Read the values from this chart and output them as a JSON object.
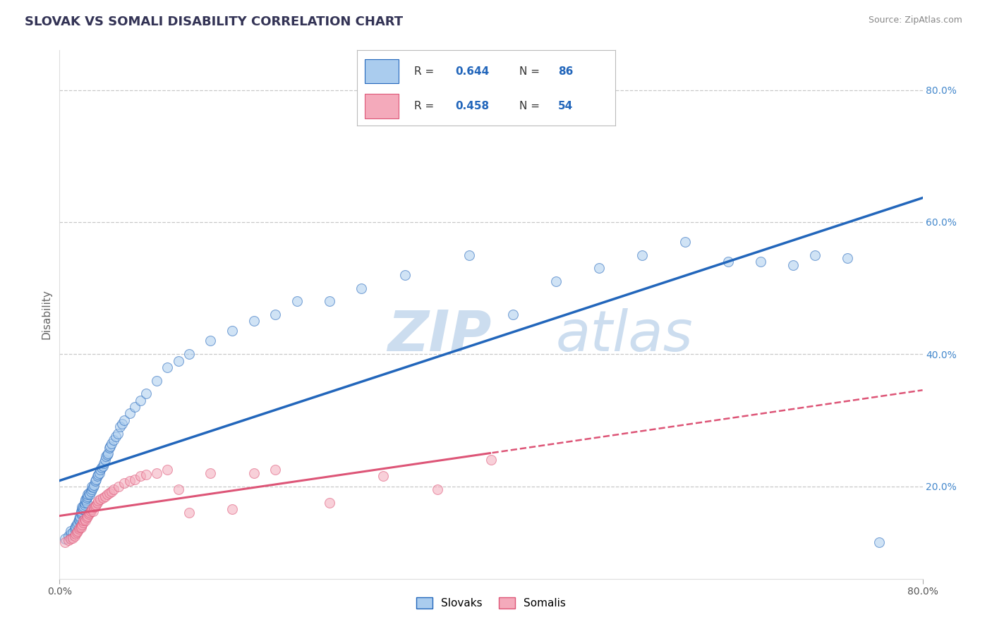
{
  "title": "SLOVAK VS SOMALI DISABILITY CORRELATION CHART",
  "source": "Source: ZipAtlas.com",
  "ylabel": "Disability",
  "xlabel": "",
  "xlim": [
    0.0,
    0.8
  ],
  "ylim": [
    0.06,
    0.86
  ],
  "y_ticks_right": [
    0.2,
    0.4,
    0.6,
    0.8
  ],
  "grid_color": "#c8c8c8",
  "background_color": "#ffffff",
  "slovak_color": "#aaccee",
  "somali_color": "#f4aabb",
  "slovak_line_color": "#2266bb",
  "somali_line_color": "#dd5577",
  "watermark": "ZIPatlas",
  "watermark_color": "#ccddef",
  "slovak_scatter_x": [
    0.005,
    0.008,
    0.01,
    0.01,
    0.012,
    0.014,
    0.015,
    0.015,
    0.016,
    0.017,
    0.018,
    0.018,
    0.019,
    0.019,
    0.02,
    0.02,
    0.02,
    0.021,
    0.021,
    0.022,
    0.022,
    0.023,
    0.023,
    0.024,
    0.024,
    0.025,
    0.025,
    0.026,
    0.026,
    0.027,
    0.028,
    0.029,
    0.03,
    0.03,
    0.031,
    0.032,
    0.033,
    0.034,
    0.035,
    0.036,
    0.037,
    0.038,
    0.039,
    0.04,
    0.041,
    0.042,
    0.043,
    0.044,
    0.045,
    0.046,
    0.047,
    0.048,
    0.05,
    0.052,
    0.054,
    0.056,
    0.058,
    0.06,
    0.065,
    0.07,
    0.075,
    0.08,
    0.09,
    0.1,
    0.11,
    0.12,
    0.14,
    0.16,
    0.18,
    0.2,
    0.22,
    0.25,
    0.28,
    0.32,
    0.38,
    0.42,
    0.46,
    0.5,
    0.54,
    0.58,
    0.62,
    0.65,
    0.68,
    0.7,
    0.73,
    0.76
  ],
  "slovak_scatter_y": [
    0.12,
    0.125,
    0.128,
    0.132,
    0.13,
    0.135,
    0.14,
    0.138,
    0.142,
    0.145,
    0.148,
    0.15,
    0.152,
    0.155,
    0.158,
    0.16,
    0.162,
    0.165,
    0.168,
    0.165,
    0.17,
    0.172,
    0.175,
    0.178,
    0.18,
    0.175,
    0.182,
    0.185,
    0.188,
    0.19,
    0.188,
    0.192,
    0.195,
    0.2,
    0.198,
    0.202,
    0.208,
    0.21,
    0.215,
    0.218,
    0.22,
    0.225,
    0.228,
    0.23,
    0.235,
    0.24,
    0.245,
    0.248,
    0.25,
    0.258,
    0.26,
    0.265,
    0.27,
    0.275,
    0.28,
    0.29,
    0.295,
    0.3,
    0.31,
    0.32,
    0.33,
    0.34,
    0.36,
    0.38,
    0.39,
    0.4,
    0.42,
    0.435,
    0.45,
    0.46,
    0.48,
    0.48,
    0.5,
    0.52,
    0.55,
    0.46,
    0.51,
    0.53,
    0.55,
    0.57,
    0.54,
    0.54,
    0.535,
    0.55,
    0.545,
    0.115
  ],
  "somali_scatter_x": [
    0.005,
    0.008,
    0.01,
    0.012,
    0.014,
    0.015,
    0.016,
    0.017,
    0.018,
    0.019,
    0.02,
    0.02,
    0.021,
    0.022,
    0.022,
    0.023,
    0.024,
    0.025,
    0.026,
    0.027,
    0.028,
    0.029,
    0.03,
    0.031,
    0.032,
    0.033,
    0.034,
    0.035,
    0.036,
    0.038,
    0.04,
    0.042,
    0.044,
    0.046,
    0.048,
    0.05,
    0.055,
    0.06,
    0.065,
    0.07,
    0.075,
    0.08,
    0.09,
    0.1,
    0.11,
    0.12,
    0.14,
    0.16,
    0.18,
    0.2,
    0.25,
    0.3,
    0.35,
    0.4
  ],
  "somali_scatter_y": [
    0.115,
    0.118,
    0.12,
    0.122,
    0.125,
    0.128,
    0.13,
    0.132,
    0.135,
    0.138,
    0.14,
    0.138,
    0.142,
    0.145,
    0.148,
    0.15,
    0.148,
    0.152,
    0.155,
    0.158,
    0.16,
    0.162,
    0.165,
    0.162,
    0.168,
    0.17,
    0.172,
    0.175,
    0.178,
    0.18,
    0.182,
    0.185,
    0.188,
    0.19,
    0.192,
    0.195,
    0.2,
    0.205,
    0.208,
    0.21,
    0.215,
    0.218,
    0.22,
    0.225,
    0.195,
    0.16,
    0.22,
    0.165,
    0.22,
    0.225,
    0.175,
    0.215,
    0.195,
    0.24
  ]
}
